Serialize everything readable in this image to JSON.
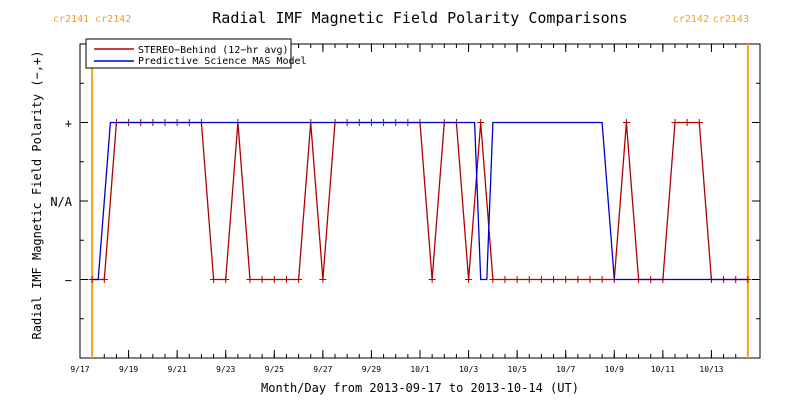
{
  "chart_data": {
    "type": "line",
    "title": "Radial IMF Magnetic Field Polarity Comparisons",
    "xlabel": "Month/Day from 2013-09-17 to 2013-10-14 (UT)",
    "ylabel": "Radial IMF Magnetic Field Polarity (−,+)",
    "xlim": [
      "2013-09-17",
      "2013-10-14"
    ],
    "y_ticks": [
      {
        "value": -1,
        "label": "−"
      },
      {
        "value": 0,
        "label": "N/A"
      },
      {
        "value": 1,
        "label": "+"
      }
    ],
    "ylim": [
      -2,
      2
    ],
    "x_ticks": [
      {
        "date": "2013-09-17",
        "label": "9/17"
      },
      {
        "date": "2013-09-19",
        "label": "9/19"
      },
      {
        "date": "2013-09-21",
        "label": "9/21"
      },
      {
        "date": "2013-09-23",
        "label": "9/23"
      },
      {
        "date": "2013-09-25",
        "label": "9/25"
      },
      {
        "date": "2013-09-27",
        "label": "9/27"
      },
      {
        "date": "2013-09-29",
        "label": "9/29"
      },
      {
        "date": "2013-10-01",
        "label": "10/1"
      },
      {
        "date": "2013-10-03",
        "label": "10/3"
      },
      {
        "date": "2013-10-05",
        "label": "10/5"
      },
      {
        "date": "2013-10-07",
        "label": "10/7"
      },
      {
        "date": "2013-10-09",
        "label": "10/9"
      },
      {
        "date": "2013-10-11",
        "label": "10/11"
      },
      {
        "date": "2013-10-13",
        "label": "10/13"
      }
    ],
    "carrington_markers": [
      {
        "date": "2013-09-17 12:00",
        "left_label": "cr2141",
        "right_label": "cr2142",
        "color": "#f5a020"
      },
      {
        "date": "2013-10-14 12:00",
        "left_label": "cr2142",
        "right_label": "cr2143",
        "color": "#f5a020"
      }
    ],
    "legend": {
      "position": "top-left"
    },
    "series": [
      {
        "name": "STEREO−Behind (12−hr avg)",
        "color": "#b00000",
        "marker": "plus",
        "x": [
          "2013-09-17 12:00",
          "2013-09-18 00:00",
          "2013-09-18 12:00",
          "2013-09-19 00:00",
          "2013-09-19 12:00",
          "2013-09-20 00:00",
          "2013-09-20 12:00",
          "2013-09-21 00:00",
          "2013-09-21 12:00",
          "2013-09-22 00:00",
          "2013-09-22 12:00",
          "2013-09-23 00:00",
          "2013-09-23 12:00",
          "2013-09-24 00:00",
          "2013-09-24 12:00",
          "2013-09-25 00:00",
          "2013-09-25 12:00",
          "2013-09-26 00:00",
          "2013-09-26 12:00",
          "2013-09-27 00:00",
          "2013-09-27 12:00",
          "2013-09-28 00:00",
          "2013-09-28 12:00",
          "2013-09-29 00:00",
          "2013-09-29 12:00",
          "2013-09-30 00:00",
          "2013-09-30 12:00",
          "2013-10-01 00:00",
          "2013-10-01 12:00",
          "2013-10-02 00:00",
          "2013-10-02 12:00",
          "2013-10-03 00:00",
          "2013-10-03 12:00",
          "2013-10-04 00:00",
          "2013-10-04 12:00",
          "2013-10-05 00:00",
          "2013-10-05 12:00",
          "2013-10-06 00:00",
          "2013-10-06 12:00",
          "2013-10-07 00:00",
          "2013-10-07 12:00",
          "2013-10-08 00:00",
          "2013-10-08 12:00",
          "2013-10-09 00:00",
          "2013-10-09 12:00",
          "2013-10-10 00:00",
          "2013-10-10 12:00",
          "2013-10-11 00:00",
          "2013-10-11 12:00",
          "2013-10-12 00:00",
          "2013-10-12 12:00",
          "2013-10-13 00:00",
          "2013-10-13 12:00",
          "2013-10-14 00:00",
          "2013-10-14 12:00"
        ],
        "values": [
          -1,
          -1,
          1,
          1,
          1,
          1,
          1,
          1,
          1,
          1,
          -1,
          -1,
          1,
          -1,
          -1,
          -1,
          -1,
          -1,
          1,
          -1,
          1,
          1,
          1,
          1,
          1,
          1,
          1,
          1,
          -1,
          1,
          1,
          -1,
          1,
          -1,
          -1,
          -1,
          -1,
          -1,
          -1,
          -1,
          -1,
          -1,
          -1,
          -1,
          1,
          -1,
          -1,
          -1,
          1,
          1,
          1,
          -1,
          -1,
          -1,
          -1
        ]
      },
      {
        "name": "Predictive Science MAS Model",
        "color": "#0000cc",
        "marker": "none",
        "x": [
          "2013-09-17 12:00",
          "2013-09-17 18:00",
          "2013-09-18 06:00",
          "2013-10-03 06:00",
          "2013-10-03 12:00",
          "2013-10-03 18:00",
          "2013-10-04 00:00",
          "2013-10-08 12:00",
          "2013-10-09 00:00",
          "2013-10-14 12:00"
        ],
        "values": [
          -1,
          -1,
          1,
          1,
          -1,
          -1,
          1,
          1,
          -1,
          -1
        ]
      }
    ]
  }
}
